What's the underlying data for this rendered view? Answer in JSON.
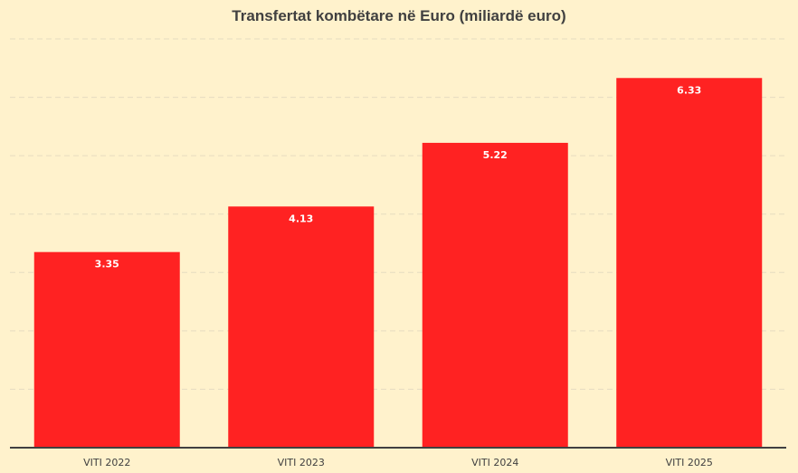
{
  "chart_data": {
    "type": "bar",
    "title": "Transfertat kombëtare në Euro (miliardë euro)",
    "categories": [
      "VITI 2022",
      "VITI 2023",
      "VITI 2024",
      "VITI 2025"
    ],
    "values": [
      3.35,
      4.13,
      5.22,
      6.33
    ],
    "xlabel": "",
    "ylabel": "",
    "ylim": [
      0,
      7
    ],
    "grid": true,
    "legend": "none",
    "bar_color": "#FF2222",
    "background_color": "#FFF2CC"
  }
}
